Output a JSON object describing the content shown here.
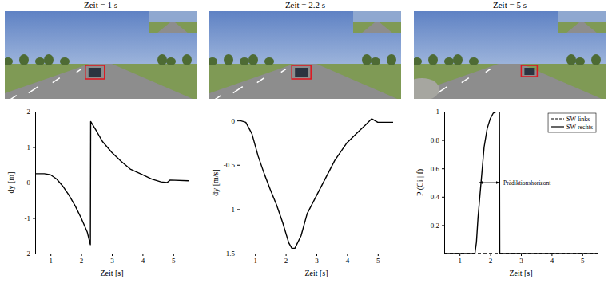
{
  "images": [
    {
      "title": "Zeit = 1 s"
    },
    {
      "title": "Zeit = 2.2 s"
    },
    {
      "title": "Zeit = 5 s"
    }
  ],
  "chart_data": [
    {
      "type": "line",
      "xlabel": "Zeit [s]",
      "ylabel": "dy [m]",
      "xlim": [
        0.5,
        5.5
      ],
      "xticks": [
        1,
        2,
        3,
        4,
        5
      ],
      "ylim": [
        -2,
        2
      ],
      "yticks": [
        -2,
        -1,
        0,
        1,
        2
      ],
      "x": [
        0.5,
        0.8,
        1.0,
        1.2,
        1.4,
        1.6,
        1.8,
        2.0,
        2.2,
        2.3,
        2.31,
        2.5,
        2.7,
        3.0,
        3.3,
        3.6,
        4.0,
        4.3,
        4.6,
        4.8,
        4.9,
        5.5
      ],
      "series": [
        {
          "color": "#000000",
          "line_style": "solid",
          "values": [
            0.25,
            0.25,
            0.22,
            0.1,
            -0.1,
            -0.35,
            -0.65,
            -1.0,
            -1.4,
            -1.75,
            1.72,
            1.45,
            1.15,
            0.85,
            0.6,
            0.38,
            0.22,
            0.1,
            0.02,
            0.0,
            0.07,
            0.05
          ]
        }
      ]
    },
    {
      "type": "line",
      "xlabel": "Zeit [s]",
      "ylabel": "ḋy [m/s]",
      "xlim": [
        0.5,
        5.5
      ],
      "xticks": [
        1,
        2,
        3,
        4,
        5
      ],
      "ylim": [
        -1.5,
        0.1
      ],
      "yticks": [
        -1.5,
        -1,
        -0.5,
        0
      ],
      "x": [
        0.5,
        0.7,
        0.9,
        1.1,
        1.3,
        1.5,
        1.7,
        1.9,
        2.1,
        2.2,
        2.3,
        2.5,
        2.7,
        3.0,
        3.3,
        3.6,
        4.0,
        4.3,
        4.6,
        4.8,
        5.0,
        5.5
      ],
      "series": [
        {
          "color": "#000000",
          "line_style": "solid",
          "values": [
            0,
            -0.02,
            -0.15,
            -0.4,
            -0.6,
            -0.78,
            -0.95,
            -1.15,
            -1.38,
            -1.44,
            -1.44,
            -1.3,
            -1.05,
            -0.85,
            -0.65,
            -0.45,
            -0.25,
            -0.15,
            -0.05,
            0.02,
            -0.02,
            -0.02
          ]
        }
      ]
    },
    {
      "type": "line",
      "xlabel": "Zeit [s]",
      "ylabel": "P (Ci | f)",
      "xlim": [
        0.5,
        5.5
      ],
      "xticks": [
        1,
        2,
        3,
        4,
        5
      ],
      "ylim": [
        0,
        1
      ],
      "yticks": [
        0.2,
        0.4,
        0.6,
        0.8,
        1
      ],
      "legend": "upper right",
      "x": [
        0.5,
        1.0,
        1.5,
        1.55,
        1.6,
        1.7,
        1.8,
        1.9,
        2.0,
        2.1,
        2.2,
        2.3,
        2.31,
        2.5,
        3.0,
        4.0,
        5.0,
        5.5
      ],
      "series": [
        {
          "name": "SW links",
          "color": "#000000",
          "line_style": "dashed",
          "values": [
            0,
            0,
            0,
            0,
            0,
            0,
            0,
            0,
            0,
            0,
            0,
            0,
            0,
            0,
            0,
            0,
            0,
            0
          ]
        },
        {
          "name": "SW rechts",
          "color": "#000000",
          "line_style": "solid",
          "values": [
            0,
            0,
            0,
            0.08,
            0.25,
            0.5,
            0.75,
            0.88,
            0.95,
            0.99,
            1,
            1,
            0,
            0,
            0,
            0,
            0,
            0
          ]
        }
      ],
      "annotation": {
        "text": "Prädiktionshorizont",
        "x": [
          1.65,
          2.3
        ],
        "y": 0.5
      }
    }
  ]
}
